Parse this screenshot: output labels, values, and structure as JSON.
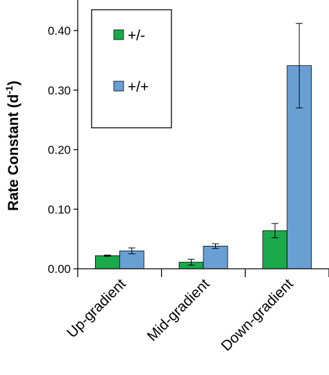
{
  "chart_data": {
    "type": "bar",
    "title": "",
    "xlabel": "",
    "ylabel_main": "Rate Constant (d",
    "ylabel_sup": "-1",
    "ylabel_close": ")",
    "ylim": [
      0,
      0.4
    ],
    "yticks": [
      "0.00",
      "0.10",
      "0.20",
      "0.30",
      "0.40"
    ],
    "ytick_values": [
      0,
      0.1,
      0.2,
      0.3,
      0.4
    ],
    "categories": [
      "Up-gradient",
      "Mid-gradient",
      "Down-gradient"
    ],
    "grid": false,
    "legend_position": "top-left",
    "series": [
      {
        "name": "+/-",
        "color": "#1aaa4a",
        "values": [
          0.022,
          0.011,
          0.064
        ],
        "errors": [
          0.001,
          0.005,
          0.012
        ]
      },
      {
        "name": "+/+",
        "color": "#6a9fd4",
        "values": [
          0.03,
          0.038,
          0.341
        ],
        "errors": [
          0.005,
          0.004,
          0.071
        ]
      }
    ]
  }
}
